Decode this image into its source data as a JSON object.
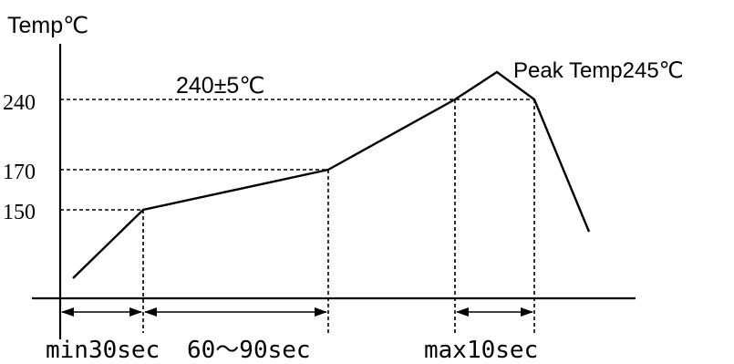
{
  "diagram": {
    "y_axis_label": "Temp℃",
    "y_ticks": [
      "240",
      "170",
      "150"
    ],
    "plateau_label": "240±5℃",
    "peak_label": "Peak Temp245℃",
    "durations": [
      "min30sec",
      "60～90sec",
      "max10sec"
    ]
  }
}
